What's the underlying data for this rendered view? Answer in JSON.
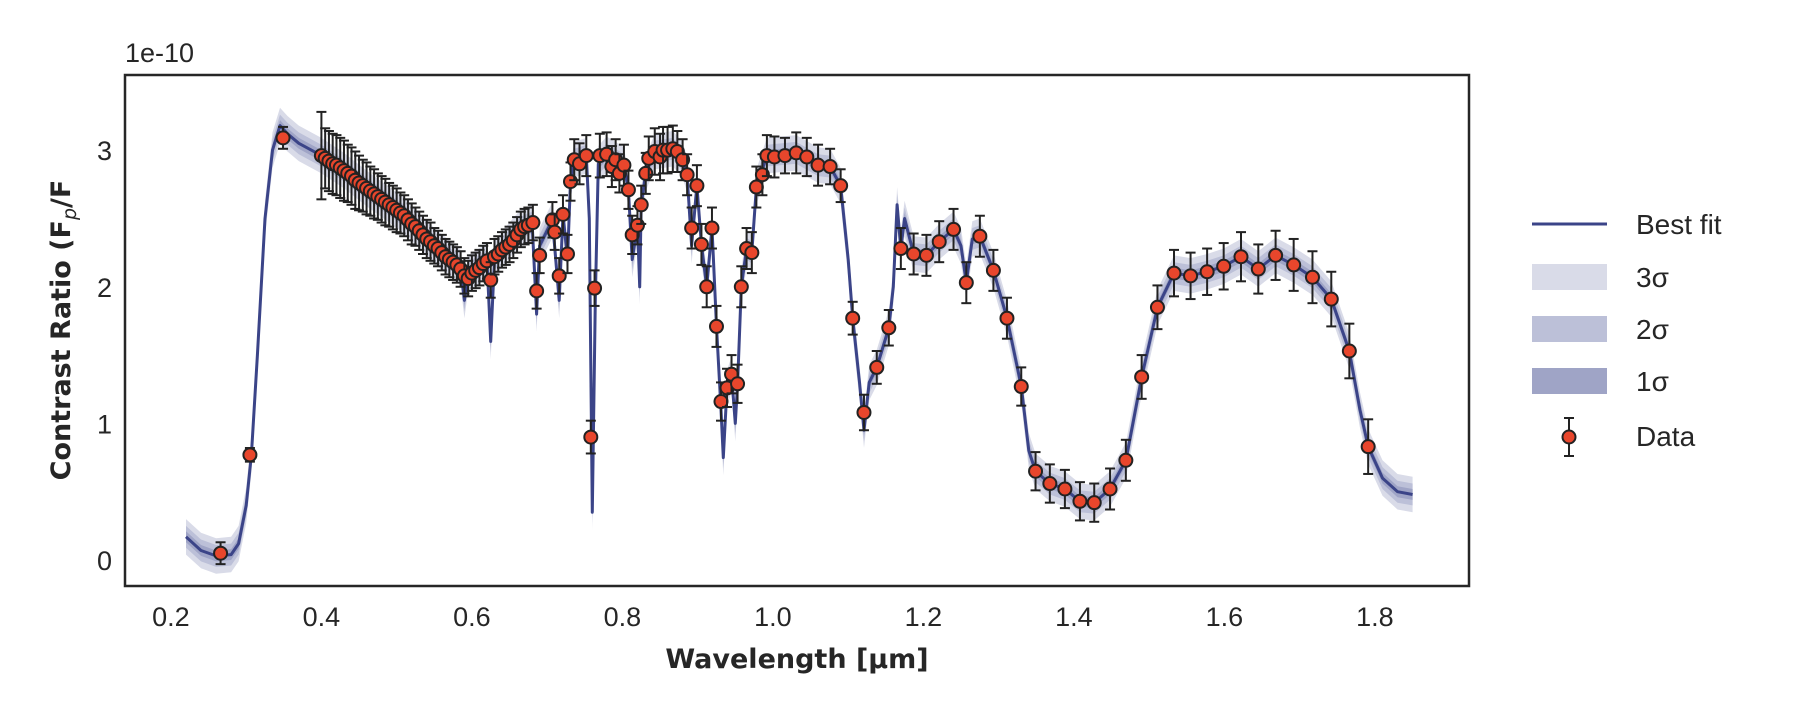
{
  "chart_data": {
    "type": "line",
    "title": "",
    "xlabel": "Wavelength [μm]",
    "ylabel": "Contrast Ratio (F_p/F_⋆)",
    "y_offset_label": "1e-10",
    "xlim": [
      0.139,
      1.925
    ],
    "ylim": [
      -0.19,
      3.55
    ],
    "xticks": [
      "0.2",
      "0.4",
      "0.6",
      "0.8",
      "1.0",
      "1.2",
      "1.4",
      "1.6",
      "1.8"
    ],
    "yticks": [
      "0",
      "1",
      "2",
      "3"
    ],
    "grid": false,
    "legend_placement": "outside-right",
    "legend": [
      "Best fit",
      "3σ",
      "2σ",
      "1σ",
      "Data"
    ],
    "colors": {
      "best_fit": "#3b4488",
      "sigma3": "#d9dbe8",
      "sigma2": "#bcc0d8",
      "sigma1": "#9fa4c6",
      "data_fill": "#e8462c",
      "data_edge": "#222222"
    },
    "band_halfwidths": {
      "sigma1": 0.04,
      "sigma2": 0.08,
      "sigma3": 0.13
    },
    "best_fit": [
      [
        0.22,
        0.17
      ],
      [
        0.24,
        0.07
      ],
      [
        0.26,
        0.03
      ],
      [
        0.28,
        0.04
      ],
      [
        0.29,
        0.12
      ],
      [
        0.3,
        0.4
      ],
      [
        0.307,
        0.77
      ],
      [
        0.315,
        1.5
      ],
      [
        0.325,
        2.5
      ],
      [
        0.335,
        3.0
      ],
      [
        0.345,
        3.18
      ],
      [
        0.355,
        3.12
      ],
      [
        0.37,
        3.05
      ],
      [
        0.4,
        2.96
      ],
      [
        0.43,
        2.85
      ],
      [
        0.46,
        2.72
      ],
      [
        0.51,
        2.52
      ],
      [
        0.55,
        2.3
      ],
      [
        0.585,
        2.14
      ],
      [
        0.59,
        1.9
      ],
      [
        0.595,
        2.1
      ],
      [
        0.62,
        2.19
      ],
      [
        0.625,
        1.6
      ],
      [
        0.63,
        2.2
      ],
      [
        0.642,
        2.29
      ],
      [
        0.664,
        2.43
      ],
      [
        0.68,
        2.47
      ],
      [
        0.686,
        1.8
      ],
      [
        0.69,
        2.3
      ],
      [
        0.707,
        2.49
      ],
      [
        0.716,
        1.9
      ],
      [
        0.721,
        2.53
      ],
      [
        0.727,
        2.2
      ],
      [
        0.731,
        2.77
      ],
      [
        0.736,
        2.93
      ],
      [
        0.752,
        2.96
      ],
      [
        0.756,
        2.5
      ],
      [
        0.76,
        0.35
      ],
      [
        0.764,
        1.9
      ],
      [
        0.768,
        2.9
      ],
      [
        0.779,
        2.97
      ],
      [
        0.791,
        2.93
      ],
      [
        0.802,
        2.89
      ],
      [
        0.808,
        2.71
      ],
      [
        0.813,
        2.2
      ],
      [
        0.82,
        2.45
      ],
      [
        0.823,
        2.0
      ],
      [
        0.825,
        2.6
      ],
      [
        0.831,
        2.83
      ],
      [
        0.843,
        2.99
      ],
      [
        0.867,
        3.01
      ],
      [
        0.88,
        2.93
      ],
      [
        0.886,
        2.82
      ],
      [
        0.892,
        2.3
      ],
      [
        0.899,
        2.74
      ],
      [
        0.905,
        2.31
      ],
      [
        0.912,
        2.0
      ],
      [
        0.919,
        2.43
      ],
      [
        0.925,
        1.71
      ],
      [
        0.931,
        1.1
      ],
      [
        0.934,
        0.75
      ],
      [
        0.939,
        1.26
      ],
      [
        0.945,
        1.36
      ],
      [
        0.95,
        1.0
      ],
      [
        0.953,
        1.29
      ],
      [
        0.958,
        2.0
      ],
      [
        0.965,
        2.28
      ],
      [
        0.972,
        2.25
      ],
      [
        0.978,
        2.73
      ],
      [
        0.992,
        2.96
      ],
      [
        1.031,
        2.98
      ],
      [
        1.06,
        2.89
      ],
      [
        1.076,
        2.88
      ],
      [
        1.09,
        2.74
      ],
      [
        1.1,
        2.2
      ],
      [
        1.106,
        1.77
      ],
      [
        1.115,
        1.3
      ],
      [
        1.121,
        0.95
      ],
      [
        1.128,
        1.3
      ],
      [
        1.138,
        1.41
      ],
      [
        1.154,
        1.7
      ],
      [
        1.16,
        2.0
      ],
      [
        1.165,
        2.6
      ],
      [
        1.17,
        2.28
      ],
      [
        1.175,
        2.5
      ],
      [
        1.187,
        2.24
      ],
      [
        1.204,
        2.23
      ],
      [
        1.221,
        2.33
      ],
      [
        1.24,
        2.42
      ],
      [
        1.25,
        2.3
      ],
      [
        1.257,
        2.03
      ],
      [
        1.265,
        2.35
      ],
      [
        1.275,
        2.37
      ],
      [
        1.293,
        2.12
      ],
      [
        1.311,
        1.77
      ],
      [
        1.33,
        1.27
      ],
      [
        1.34,
        0.8
      ],
      [
        1.349,
        0.65
      ],
      [
        1.368,
        0.56
      ],
      [
        1.388,
        0.52
      ],
      [
        1.408,
        0.43
      ],
      [
        1.427,
        0.42
      ],
      [
        1.448,
        0.52
      ],
      [
        1.469,
        0.73
      ],
      [
        1.49,
        1.34
      ],
      [
        1.511,
        1.85
      ],
      [
        1.533,
        2.1
      ],
      [
        1.555,
        2.08
      ],
      [
        1.577,
        2.11
      ],
      [
        1.599,
        2.15
      ],
      [
        1.622,
        2.22
      ],
      [
        1.645,
        2.13
      ],
      [
        1.668,
        2.23
      ],
      [
        1.692,
        2.16
      ],
      [
        1.717,
        2.07
      ],
      [
        1.742,
        1.91
      ],
      [
        1.766,
        1.53
      ],
      [
        1.78,
        1.1
      ],
      [
        1.791,
        0.83
      ],
      [
        1.81,
        0.6
      ],
      [
        1.83,
        0.5
      ],
      [
        1.85,
        0.48
      ]
    ],
    "data": [
      [
        0.266,
        0.05,
        0.08
      ],
      [
        0.305,
        0.77,
        0.05
      ],
      [
        0.349,
        3.09,
        0.08
      ],
      [
        0.4,
        2.96,
        0.32
      ],
      [
        0.405,
        2.94,
        0.22
      ],
      [
        0.41,
        2.92,
        0.22
      ],
      [
        0.415,
        2.9,
        0.22
      ],
      [
        0.42,
        2.89,
        0.22
      ],
      [
        0.425,
        2.87,
        0.22
      ],
      [
        0.43,
        2.85,
        0.22
      ],
      [
        0.435,
        2.83,
        0.21
      ],
      [
        0.44,
        2.81,
        0.21
      ],
      [
        0.445,
        2.78,
        0.21
      ],
      [
        0.45,
        2.76,
        0.2
      ],
      [
        0.455,
        2.74,
        0.19
      ],
      [
        0.46,
        2.72,
        0.19
      ],
      [
        0.465,
        2.7,
        0.18
      ],
      [
        0.47,
        2.68,
        0.18
      ],
      [
        0.475,
        2.66,
        0.17
      ],
      [
        0.48,
        2.64,
        0.17
      ],
      [
        0.485,
        2.62,
        0.17
      ],
      [
        0.49,
        2.6,
        0.16
      ],
      [
        0.495,
        2.58,
        0.16
      ],
      [
        0.5,
        2.56,
        0.16
      ],
      [
        0.505,
        2.54,
        0.15
      ],
      [
        0.51,
        2.52,
        0.15
      ],
      [
        0.515,
        2.49,
        0.15
      ],
      [
        0.52,
        2.46,
        0.15
      ],
      [
        0.525,
        2.44,
        0.14
      ],
      [
        0.53,
        2.41,
        0.14
      ],
      [
        0.535,
        2.38,
        0.14
      ],
      [
        0.54,
        2.35,
        0.14
      ],
      [
        0.545,
        2.33,
        0.14
      ],
      [
        0.55,
        2.3,
        0.13
      ],
      [
        0.555,
        2.28,
        0.13
      ],
      [
        0.56,
        2.25,
        0.13
      ],
      [
        0.565,
        2.22,
        0.13
      ],
      [
        0.57,
        2.2,
        0.13
      ],
      [
        0.575,
        2.18,
        0.13
      ],
      [
        0.58,
        2.16,
        0.13
      ],
      [
        0.585,
        2.13,
        0.13
      ],
      [
        0.59,
        2.08,
        0.13
      ],
      [
        0.595,
        2.06,
        0.13
      ],
      [
        0.6,
        2.1,
        0.13
      ],
      [
        0.605,
        2.12,
        0.13
      ],
      [
        0.61,
        2.14,
        0.13
      ],
      [
        0.615,
        2.17,
        0.13
      ],
      [
        0.62,
        2.19,
        0.13
      ],
      [
        0.625,
        2.05,
        0.13
      ],
      [
        0.63,
        2.22,
        0.13
      ],
      [
        0.635,
        2.24,
        0.13
      ],
      [
        0.64,
        2.27,
        0.13
      ],
      [
        0.645,
        2.29,
        0.13
      ],
      [
        0.65,
        2.31,
        0.13
      ],
      [
        0.655,
        2.34,
        0.13
      ],
      [
        0.66,
        2.38,
        0.13
      ],
      [
        0.665,
        2.42,
        0.13
      ],
      [
        0.67,
        2.44,
        0.13
      ],
      [
        0.675,
        2.45,
        0.13
      ],
      [
        0.681,
        2.47,
        0.13
      ],
      [
        0.686,
        1.97,
        0.13
      ],
      [
        0.69,
        2.23,
        0.13
      ],
      [
        0.707,
        2.49,
        0.13
      ],
      [
        0.71,
        2.4,
        0.13
      ],
      [
        0.716,
        2.08,
        0.13
      ],
      [
        0.721,
        2.53,
        0.14
      ],
      [
        0.727,
        2.24,
        0.14
      ],
      [
        0.731,
        2.77,
        0.14
      ],
      [
        0.736,
        2.93,
        0.15
      ],
      [
        0.743,
        2.9,
        0.15
      ],
      [
        0.752,
        2.96,
        0.15
      ],
      [
        0.758,
        0.9,
        0.12
      ],
      [
        0.763,
        1.99,
        0.13
      ],
      [
        0.77,
        2.96,
        0.16
      ],
      [
        0.779,
        2.97,
        0.16
      ],
      [
        0.786,
        2.88,
        0.15
      ],
      [
        0.791,
        2.93,
        0.15
      ],
      [
        0.796,
        2.83,
        0.14
      ],
      [
        0.802,
        2.89,
        0.15
      ],
      [
        0.808,
        2.71,
        0.14
      ],
      [
        0.813,
        2.38,
        0.14
      ],
      [
        0.82,
        2.45,
        0.14
      ],
      [
        0.825,
        2.6,
        0.14
      ],
      [
        0.831,
        2.83,
        0.15
      ],
      [
        0.835,
        2.94,
        0.16
      ],
      [
        0.843,
        2.99,
        0.17
      ],
      [
        0.85,
        2.95,
        0.17
      ],
      [
        0.854,
        3.0,
        0.17
      ],
      [
        0.86,
        3.0,
        0.17
      ],
      [
        0.867,
        3.01,
        0.17
      ],
      [
        0.873,
        2.99,
        0.15
      ],
      [
        0.88,
        2.93,
        0.15
      ],
      [
        0.886,
        2.82,
        0.15
      ],
      [
        0.892,
        2.43,
        0.15
      ],
      [
        0.899,
        2.74,
        0.15
      ],
      [
        0.905,
        2.31,
        0.15
      ],
      [
        0.912,
        2.0,
        0.15
      ],
      [
        0.919,
        2.43,
        0.15
      ],
      [
        0.925,
        1.71,
        0.15
      ],
      [
        0.931,
        1.16,
        0.14
      ],
      [
        0.939,
        1.26,
        0.14
      ],
      [
        0.945,
        1.36,
        0.14
      ],
      [
        0.953,
        1.29,
        0.14
      ],
      [
        0.958,
        2.0,
        0.15
      ],
      [
        0.965,
        2.28,
        0.15
      ],
      [
        0.972,
        2.25,
        0.15
      ],
      [
        0.978,
        2.73,
        0.15
      ],
      [
        0.986,
        2.82,
        0.15
      ],
      [
        0.992,
        2.96,
        0.15
      ],
      [
        1.002,
        2.95,
        0.15
      ],
      [
        1.016,
        2.96,
        0.13
      ],
      [
        1.031,
        2.98,
        0.15
      ],
      [
        1.045,
        2.95,
        0.14
      ],
      [
        1.06,
        2.89,
        0.15
      ],
      [
        1.076,
        2.88,
        0.13
      ],
      [
        1.09,
        2.74,
        0.12
      ],
      [
        1.106,
        1.77,
        0.12
      ],
      [
        1.121,
        1.08,
        0.13
      ],
      [
        1.138,
        1.41,
        0.12
      ],
      [
        1.154,
        1.7,
        0.13
      ],
      [
        1.17,
        2.28,
        0.15
      ],
      [
        1.187,
        2.24,
        0.15
      ],
      [
        1.204,
        2.23,
        0.15
      ],
      [
        1.221,
        2.33,
        0.15
      ],
      [
        1.24,
        2.42,
        0.15
      ],
      [
        1.257,
        2.03,
        0.15
      ],
      [
        1.275,
        2.37,
        0.15
      ],
      [
        1.293,
        2.12,
        0.15
      ],
      [
        1.311,
        1.77,
        0.15
      ],
      [
        1.33,
        1.27,
        0.14
      ],
      [
        1.349,
        0.65,
        0.14
      ],
      [
        1.368,
        0.56,
        0.14
      ],
      [
        1.388,
        0.52,
        0.14
      ],
      [
        1.408,
        0.43,
        0.14
      ],
      [
        1.427,
        0.42,
        0.14
      ],
      [
        1.448,
        0.52,
        0.15
      ],
      [
        1.469,
        0.73,
        0.15
      ],
      [
        1.49,
        1.34,
        0.16
      ],
      [
        1.511,
        1.85,
        0.16
      ],
      [
        1.533,
        2.1,
        0.17
      ],
      [
        1.555,
        2.08,
        0.17
      ],
      [
        1.577,
        2.11,
        0.17
      ],
      [
        1.599,
        2.15,
        0.17
      ],
      [
        1.622,
        2.22,
        0.18
      ],
      [
        1.645,
        2.13,
        0.18
      ],
      [
        1.668,
        2.23,
        0.18
      ],
      [
        1.692,
        2.16,
        0.19
      ],
      [
        1.717,
        2.07,
        0.19
      ],
      [
        1.742,
        1.91,
        0.2
      ],
      [
        1.766,
        1.53,
        0.2
      ],
      [
        1.791,
        0.83,
        0.2
      ]
    ]
  }
}
